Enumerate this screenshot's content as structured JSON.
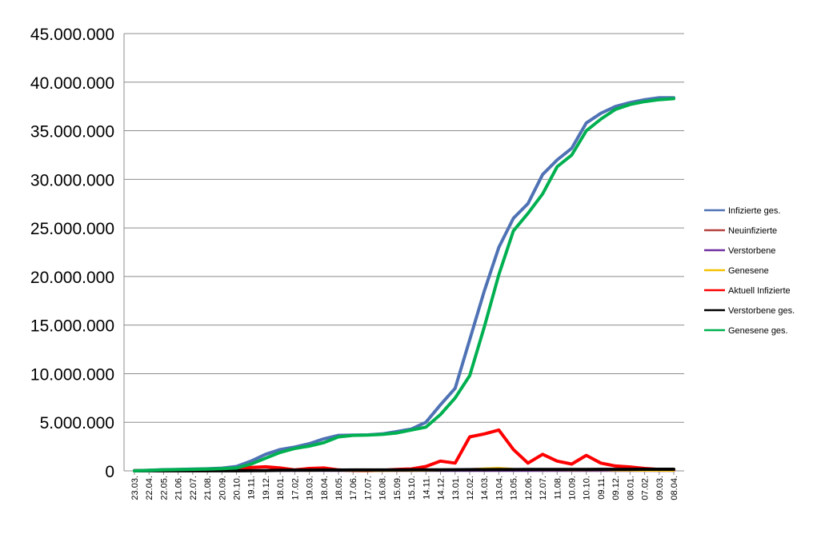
{
  "chart_data": {
    "type": "line",
    "title": "",
    "xlabel": "",
    "ylabel": "",
    "ylim": [
      0,
      45000000
    ],
    "yticks": [
      0,
      5000000,
      10000000,
      15000000,
      20000000,
      25000000,
      30000000,
      35000000,
      40000000,
      45000000
    ],
    "ytick_labels": [
      "0",
      "5.000.000",
      "10.000.000",
      "15.000.000",
      "20.000.000",
      "25.000.000",
      "30.000.000",
      "35.000.000",
      "40.000.000",
      "45.000.000"
    ],
    "grid": "horizontal",
    "legend_position": "right",
    "categories": [
      "23.03.",
      "22.04.",
      "22.05.",
      "21.06.",
      "22.07.",
      "21.08.",
      "20.09.",
      "20.10.",
      "19.11.",
      "19.12.",
      "18.01.",
      "17.02.",
      "19.03.",
      "18.04.",
      "18.05.",
      "17.06.",
      "17.07.",
      "16.08.",
      "15.09.",
      "15.10.",
      "14.11.",
      "14.12.",
      "13.01.",
      "12.02.",
      "14.03.",
      "13.04.",
      "13.05.",
      "12.06.",
      "12.07.",
      "11.08.",
      "10.09.",
      "10.10.",
      "09.11.",
      "09.12.",
      "08.01.",
      "07.02.",
      "09.03.",
      "08.04."
    ],
    "series": [
      {
        "name": "Infizierte ges.",
        "color": "#4f72b5",
        "values": [
          20000,
          60000,
          120000,
          150000,
          180000,
          210000,
          280000,
          450000,
          1000000,
          1700000,
          2200000,
          2450000,
          2800000,
          3300000,
          3650000,
          3680000,
          3700000,
          3800000,
          4050000,
          4300000,
          5000000,
          6800000,
          8500000,
          13500000,
          18500000,
          23000000,
          26000000,
          27500000,
          30500000,
          32000000,
          33200000,
          35800000,
          36800000,
          37500000,
          37900000,
          38200000,
          38400000,
          38400000
        ]
      },
      {
        "name": "Neuinfizierte",
        "color": "#b5413f",
        "values": [
          3000,
          2000,
          1000,
          1000,
          1500,
          2000,
          4000,
          15000,
          22000,
          25000,
          20000,
          9000,
          18000,
          20000,
          9000,
          3000,
          2000,
          6000,
          10000,
          12000,
          40000,
          60000,
          80000,
          180000,
          220000,
          150000,
          70000,
          60000,
          90000,
          50000,
          50000,
          90000,
          40000,
          30000,
          20000,
          15000,
          8000,
          5000
        ]
      },
      {
        "name": "Verstorbene",
        "color": "#7030a0",
        "values": [
          50,
          100,
          50,
          20,
          10,
          10,
          20,
          200,
          500,
          800,
          900,
          500,
          200,
          200,
          150,
          50,
          20,
          20,
          30,
          50,
          100,
          300,
          400,
          300,
          300,
          250,
          200,
          100,
          100,
          100,
          150,
          200,
          150,
          100,
          100,
          80,
          60,
          50
        ]
      },
      {
        "name": "Genesene",
        "color": "#f5c200",
        "values": [
          2000,
          3000,
          2000,
          1000,
          1000,
          1500,
          3000,
          8000,
          15000,
          20000,
          25000,
          20000,
          12000,
          15000,
          15000,
          5000,
          2000,
          4000,
          6000,
          8000,
          20000,
          50000,
          80000,
          150000,
          250000,
          300000,
          200000,
          100000,
          80000,
          90000,
          60000,
          70000,
          90000,
          40000,
          30000,
          25000,
          15000,
          10000
        ]
      },
      {
        "name": "Aktuell Infizierte",
        "color": "#ff0000",
        "values": [
          30000,
          40000,
          20000,
          15000,
          15000,
          30000,
          60000,
          200000,
          350000,
          420000,
          300000,
          100000,
          250000,
          300000,
          100000,
          30000,
          20000,
          60000,
          150000,
          200000,
          450000,
          1000000,
          800000,
          3500000,
          3800000,
          4200000,
          2200000,
          800000,
          1700000,
          1000000,
          700000,
          1600000,
          800000,
          500000,
          400000,
          250000,
          150000,
          80000
        ]
      },
      {
        "name": "Verstorbene ges.",
        "color": "#000000",
        "values": [
          1000,
          8000,
          9000,
          9100,
          9200,
          9400,
          9600,
          12000,
          20000,
          35000,
          55000,
          70000,
          75000,
          80000,
          85000,
          90000,
          92000,
          93000,
          94000,
          96000,
          100000,
          108000,
          115000,
          120000,
          125000,
          130000,
          135000,
          138000,
          140000,
          142000,
          145000,
          150000,
          155000,
          158000,
          160000,
          162000,
          164000,
          165000
        ]
      },
      {
        "name": "Genesene ges.",
        "color": "#00b050",
        "values": [
          10000,
          50000,
          100000,
          130000,
          160000,
          190000,
          230000,
          300000,
          700000,
          1300000,
          1900000,
          2300000,
          2550000,
          2900000,
          3500000,
          3650000,
          3680000,
          3750000,
          3900000,
          4200000,
          4500000,
          5800000,
          7500000,
          9800000,
          14800000,
          20200000,
          24700000,
          26500000,
          28500000,
          31300000,
          32500000,
          35000000,
          36200000,
          37200000,
          37700000,
          38000000,
          38200000,
          38300000
        ]
      }
    ]
  }
}
